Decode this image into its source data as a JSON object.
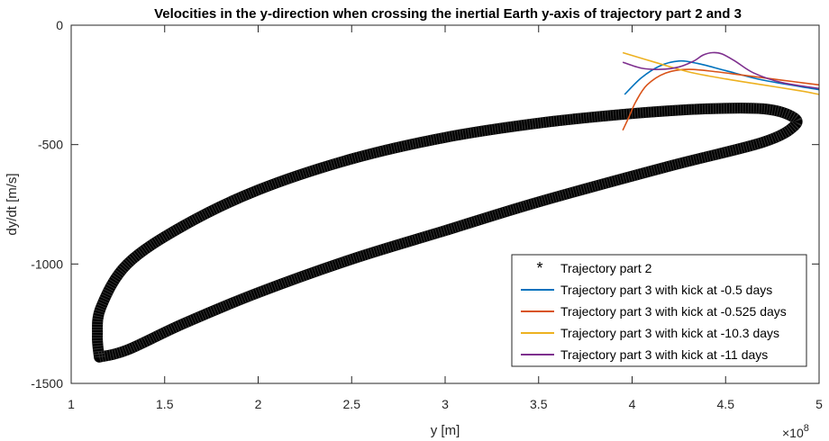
{
  "chart_data": {
    "type": "scatter",
    "title": "Velocities in the y-direction when crossing the inertial Earth y-axis of trajectory part 2 and 3",
    "xlabel": "y [m]",
    "ylabel": "dy/dt [m/s]",
    "x_exponent_label": "×10",
    "x_exponent_power": "8",
    "xlim": [
      1,
      5
    ],
    "ylim": [
      -1500,
      0
    ],
    "x_ticks": [
      1,
      1.5,
      2,
      2.5,
      3,
      3.5,
      4,
      4.5,
      5
    ],
    "x_tick_labels": [
      "1",
      "1.5",
      "2",
      "2.5",
      "3",
      "3.5",
      "4",
      "4.5",
      "5"
    ],
    "y_ticks": [
      0,
      -500,
      -1000,
      -1500
    ],
    "y_tick_labels": [
      "0",
      "-500",
      "-1000",
      "-1500"
    ],
    "grid": false,
    "legend_position": "bottom-right",
    "series": [
      {
        "name": "Trajectory part 2",
        "style": "markers",
        "marker": "*",
        "color": "#000000",
        "x": [
          1.15,
          1.14,
          1.16,
          1.3,
          1.6,
          2.0,
          2.5,
          3.0,
          3.5,
          4.0,
          4.4,
          4.7,
          4.85,
          4.87,
          4.7,
          4.2,
          3.5,
          3.0,
          2.5,
          2.0,
          1.6,
          1.3,
          1.15
        ],
        "y": [
          -1390,
          -1300,
          -1180,
          -1000,
          -840,
          -690,
          -560,
          -470,
          -410,
          -370,
          -350,
          -350,
          -380,
          -420,
          -490,
          -590,
          -740,
          -860,
          -980,
          -1120,
          -1250,
          -1360,
          -1390
        ]
      },
      {
        "name": "Trajectory part 3 with kick at -0.5 days",
        "style": "line",
        "color": "#0072BD",
        "x": [
          3.96,
          4.05,
          4.15,
          4.25,
          4.35,
          4.5,
          4.7,
          5.0
        ],
        "y": [
          -290,
          -220,
          -170,
          -150,
          -160,
          -190,
          -230,
          -270
        ]
      },
      {
        "name": "Trajectory part 3 with kick at -0.525 days",
        "style": "line",
        "color": "#D95319",
        "x": [
          3.95,
          3.98,
          4.02,
          4.08,
          4.18,
          4.3,
          4.45,
          4.6,
          4.8,
          5.0
        ],
        "y": [
          -440,
          -390,
          -320,
          -250,
          -200,
          -185,
          -195,
          -210,
          -230,
          -250
        ]
      },
      {
        "name": "Trajectory part 3 with kick at -10.3 days",
        "style": "line",
        "color": "#EDB120",
        "x": [
          3.95,
          4.1,
          4.3,
          4.5,
          4.7,
          4.9,
          5.0
        ],
        "y": [
          -115,
          -150,
          -195,
          -225,
          -250,
          -275,
          -290
        ]
      },
      {
        "name": "Trajectory part 3 with kick at -11 days",
        "style": "line",
        "color": "#7E2F8E",
        "x": [
          3.95,
          4.05,
          4.15,
          4.25,
          4.33,
          4.38,
          4.43,
          4.48,
          4.55,
          4.65,
          4.8,
          5.0
        ],
        "y": [
          -155,
          -180,
          -185,
          -175,
          -150,
          -125,
          -115,
          -120,
          -150,
          -200,
          -240,
          -265
        ]
      }
    ]
  }
}
